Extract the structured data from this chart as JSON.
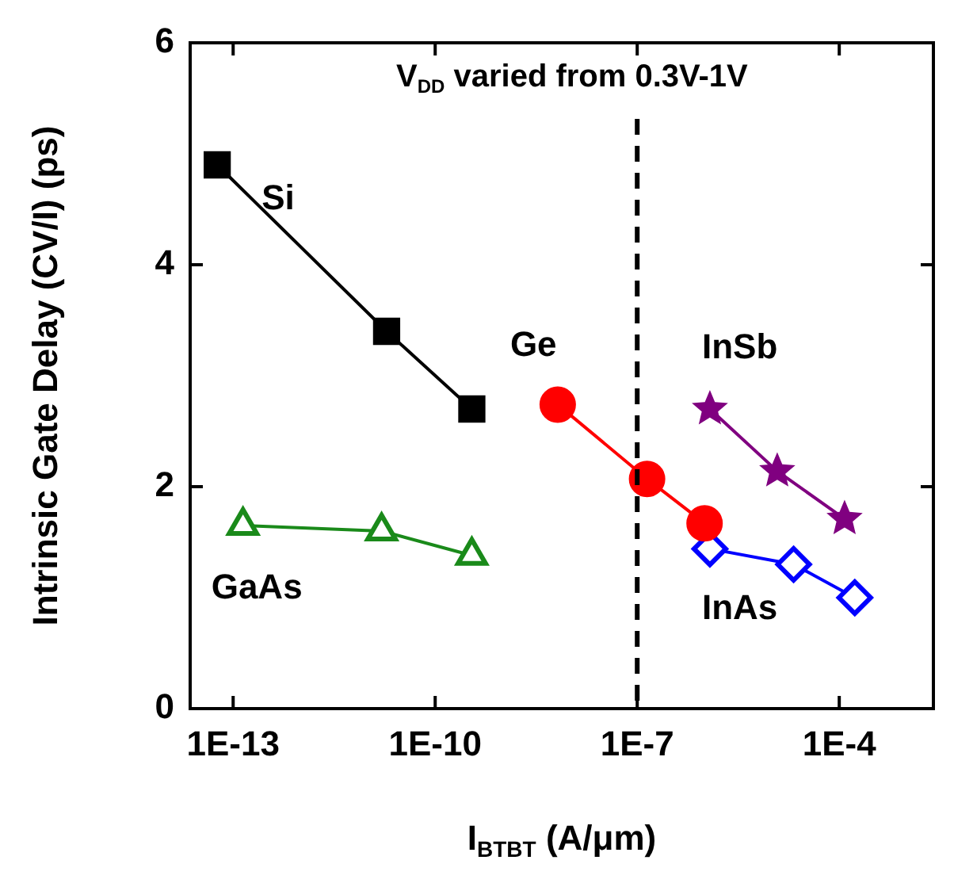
{
  "chart_data": {
    "type": "line",
    "xlabel": "I$_{BTBT}$ (A/μm)",
    "ylabel": "Intrinsic Gate Delay (CV/I) (ps)",
    "log": "x",
    "xlim": [
      2.3e-14,
      0.0025
    ],
    "ylim": [
      0,
      6
    ],
    "xticks": [
      {
        "value": 1e-13,
        "label": "1E-13"
      },
      {
        "value": 1e-10,
        "label": "1E-10"
      },
      {
        "value": 1e-07,
        "label": "1E-7"
      },
      {
        "value": 0.0001,
        "label": "1E-4"
      }
    ],
    "yticks": [
      0,
      2,
      4,
      6
    ],
    "grid": false,
    "legend": false,
    "ref_lines": [
      {
        "axis": "x",
        "value": 1e-07,
        "line_style": "dashed",
        "color": "#000000"
      }
    ],
    "annotations": [
      "V$_{DD}$ varied from 0.3V-1V"
    ],
    "series": [
      {
        "name": "Si",
        "color": "#000000",
        "marker": "square",
        "x": [
          5.8e-14,
          1.9e-11,
          3.5e-10
        ],
        "values": [
          4.9,
          3.4,
          2.7
        ]
      },
      {
        "name": "GaAs",
        "color": "#1a8a1a",
        "marker": "triangle",
        "x": [
          1.4e-13,
          1.6e-11,
          3.5e-10
        ],
        "values": [
          1.65,
          1.6,
          1.38
        ]
      },
      {
        "name": "Ge",
        "color": "#ff0000",
        "marker": "circle",
        "x": [
          6.6e-09,
          1.4e-07,
          1e-06
        ],
        "values": [
          2.74,
          2.07,
          1.67
        ]
      },
      {
        "name": "InSb",
        "color": "#800080",
        "marker": "star",
        "x": [
          1.2e-06,
          1.2e-05,
          0.00012
        ],
        "values": [
          2.7,
          2.14,
          1.71
        ]
      },
      {
        "name": "InAs",
        "color": "#0000ff",
        "marker": "diamond",
        "x": [
          1.2e-06,
          2.1e-05,
          0.00017
        ],
        "values": [
          1.44,
          1.3,
          1.0
        ]
      }
    ]
  }
}
